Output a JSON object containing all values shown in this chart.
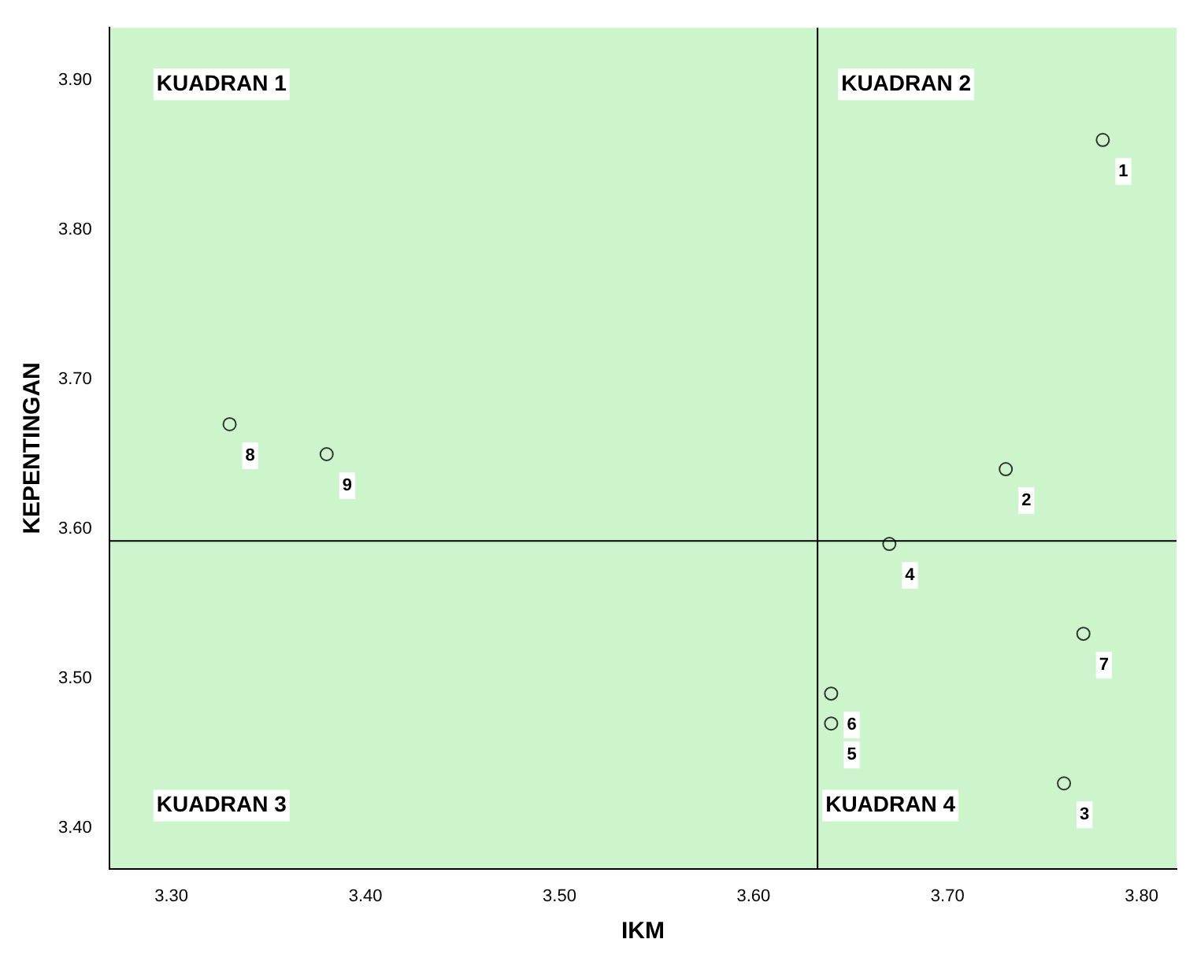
{
  "chart_data": {
    "type": "scatter",
    "xlabel": "IKM",
    "ylabel": "KEPENTINGAN",
    "x": [
      3.78,
      3.73,
      3.76,
      3.67,
      3.64,
      3.64,
      3.77,
      3.33,
      3.38
    ],
    "values": [
      3.86,
      3.64,
      3.43,
      3.59,
      3.47,
      3.49,
      3.53,
      3.67,
      3.65
    ],
    "color": "#333333",
    "marker": "circle",
    "grid": false,
    "legend": false,
    "xlim": [
      3.268,
      3.818
    ],
    "xticks": [
      {
        "value": 3.3,
        "label": "3.30"
      },
      {
        "value": 3.4,
        "label": "3.40"
      },
      {
        "value": 3.5,
        "label": "3.50"
      },
      {
        "value": 3.6,
        "label": "3.60"
      },
      {
        "value": 3.7,
        "label": "3.70"
      },
      {
        "value": 3.8,
        "label": "3.80"
      }
    ],
    "ylim": [
      3.373,
      3.935
    ],
    "yticks": [
      {
        "value": 3.4,
        "label": "3.40"
      },
      {
        "value": 3.5,
        "label": "3.50"
      },
      {
        "value": 3.6,
        "label": "3.60"
      },
      {
        "value": 3.7,
        "label": "3.70"
      },
      {
        "value": 3.8,
        "label": "3.80"
      },
      {
        "value": 3.9,
        "label": "3.90"
      }
    ],
    "ref_lines": [
      {
        "axis": "x",
        "value": 3.633,
        "color": "#000000"
      },
      {
        "axis": "y",
        "value": 3.592,
        "color": "#000000"
      }
    ],
    "annotations": [
      "KUADRAN 1",
      "KUADRAN 2",
      "KUADRAN 3",
      "KUADRAN 4",
      {
        "text": "1",
        "x": 3.78,
        "y": 3.86
      },
      {
        "text": "2",
        "x": 3.73,
        "y": 3.64
      },
      {
        "text": "3",
        "x": 3.76,
        "y": 3.43
      },
      {
        "text": "4",
        "x": 3.67,
        "y": 3.59
      },
      {
        "text": "5",
        "x": 3.64,
        "y": 3.47
      },
      {
        "text": "6",
        "x": 3.64,
        "y": 3.49
      },
      {
        "text": "7",
        "x": 3.77,
        "y": 3.53
      },
      {
        "text": "8",
        "x": 3.33,
        "y": 3.67
      },
      {
        "text": "9",
        "x": 3.38,
        "y": 3.65
      }
    ]
  }
}
